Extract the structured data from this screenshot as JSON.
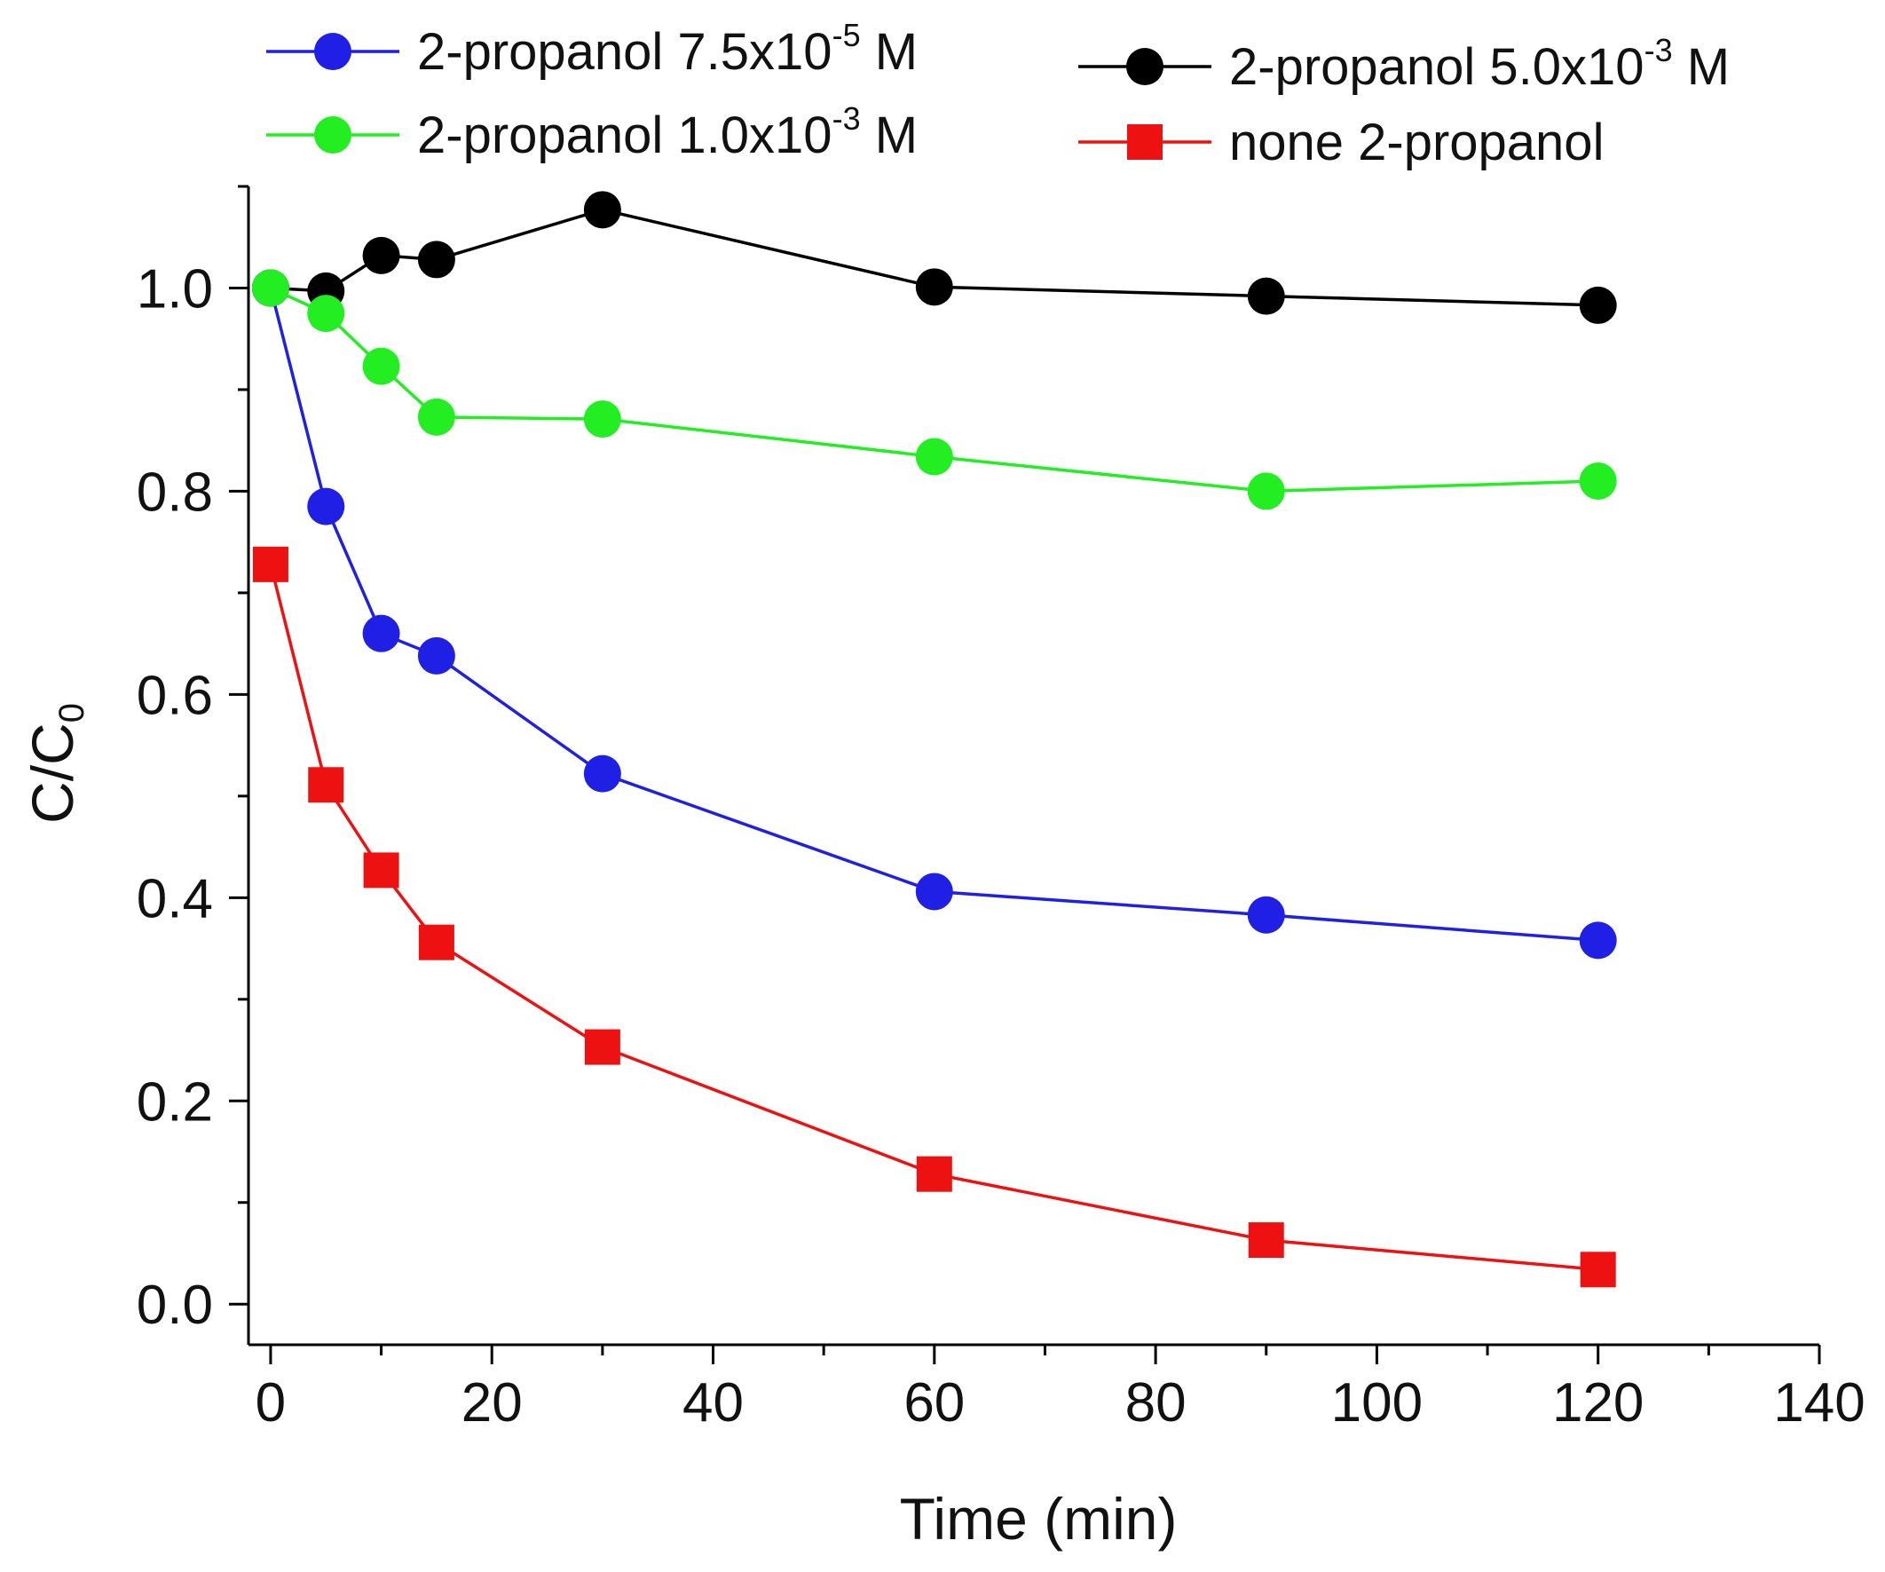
{
  "chart_data": {
    "type": "line",
    "title": "",
    "xlabel": "Time (min)",
    "ylabel": {
      "main": "C/C",
      "sub": "0"
    },
    "xlim": [
      -2,
      140
    ],
    "ylim": [
      -0.04,
      1.1
    ],
    "xticks": [
      0,
      20,
      40,
      60,
      80,
      100,
      120,
      140
    ],
    "yticks": [
      0.0,
      0.2,
      0.4,
      0.6,
      0.8,
      1.0
    ],
    "xtick_labels": [
      "0",
      "20",
      "40",
      "60",
      "80",
      "100",
      "120",
      "140"
    ],
    "ytick_labels": [
      "0.0",
      "0.2",
      "0.4",
      "0.6",
      "0.8",
      "1.0"
    ],
    "grid": false,
    "legend_position": "top",
    "series": [
      {
        "name": "2-propanol 7.5x10-5 M",
        "label": {
          "text": "2-propanol 7.5x10",
          "sup": "-5",
          "tail": " M"
        },
        "color": "#1f1fe6",
        "marker": "circle",
        "x": [
          0,
          5,
          10,
          15,
          30,
          60,
          90,
          120
        ],
        "y": [
          1.0,
          0.785,
          0.66,
          0.638,
          0.522,
          0.406,
          0.383,
          0.358
        ]
      },
      {
        "name": "2-propanol 5.0x10-3 M",
        "label": {
          "text": "2-propanol 5.0x10",
          "sup": "-3",
          "tail": " M"
        },
        "color": "#000000",
        "marker": "circle",
        "x": [
          0,
          5,
          10,
          15,
          30,
          60,
          90,
          120
        ],
        "y": [
          1.0,
          0.997,
          1.032,
          1.028,
          1.077,
          1.001,
          0.992,
          0.983
        ]
      },
      {
        "name": "2-propanol 1.0x10-3 M",
        "label": {
          "text": "2-propanol 1.0x10",
          "sup": "-3",
          "tail": " M"
        },
        "color": "#22ee22",
        "marker": "circle",
        "x": [
          0,
          5,
          10,
          15,
          30,
          60,
          90,
          120
        ],
        "y": [
          1.0,
          0.975,
          0.923,
          0.873,
          0.871,
          0.834,
          0.8,
          0.81
        ]
      },
      {
        "name": "none 2-propanol",
        "label": {
          "text": "none 2-propanol",
          "sup": "",
          "tail": ""
        },
        "color": "#ee1111",
        "marker": "square",
        "x": [
          0,
          5,
          10,
          15,
          30,
          60,
          90,
          120
        ],
        "y": [
          0.728,
          0.511,
          0.427,
          0.356,
          0.253,
          0.128,
          0.063,
          0.034
        ]
      }
    ]
  }
}
